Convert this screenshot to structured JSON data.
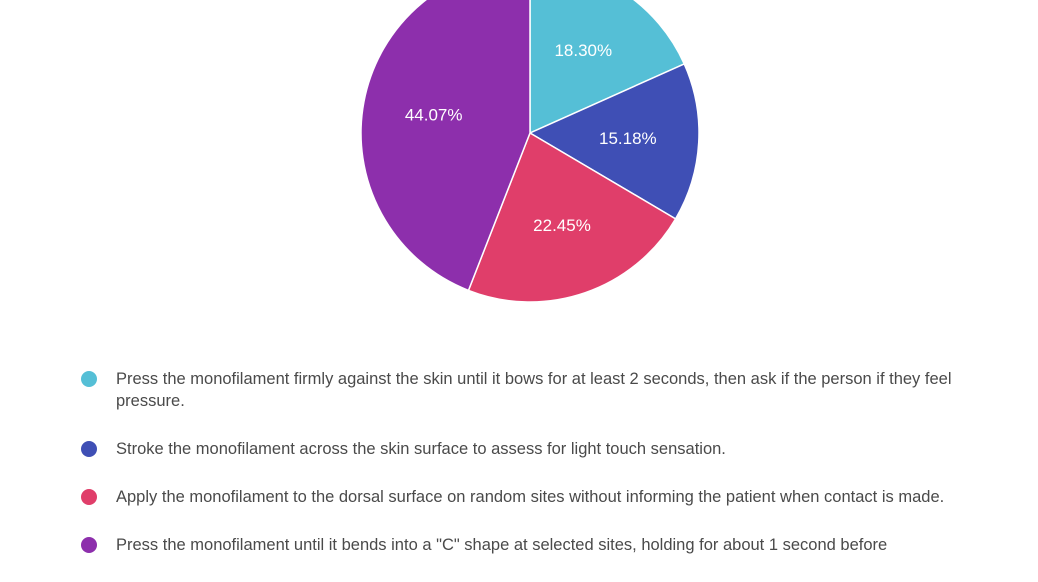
{
  "chart_data": {
    "type": "pie",
    "slices": [
      {
        "value": 18.3,
        "label": "18.30%",
        "color": "#55bfd6",
        "legend": "Press the monofilament firmly against the skin until it bows for at least 2 seconds, then ask if the person if they feel pressure."
      },
      {
        "value": 15.18,
        "label": "15.18%",
        "color": "#3f4fb5",
        "legend": "Stroke the monofilament across the skin surface to assess for light touch sensation."
      },
      {
        "value": 22.45,
        "label": "22.45%",
        "color": "#e03e6a",
        "legend": "Apply the monofilament to the dorsal surface on random sites without informing the patient when contact is made."
      },
      {
        "value": 44.07,
        "label": "44.07%",
        "color": "#8d2fac",
        "legend": "Press the monofilament until it bends into a \"C\" shape at selected sites, holding for about 1 second before"
      }
    ],
    "legend_position": "bottom"
  }
}
